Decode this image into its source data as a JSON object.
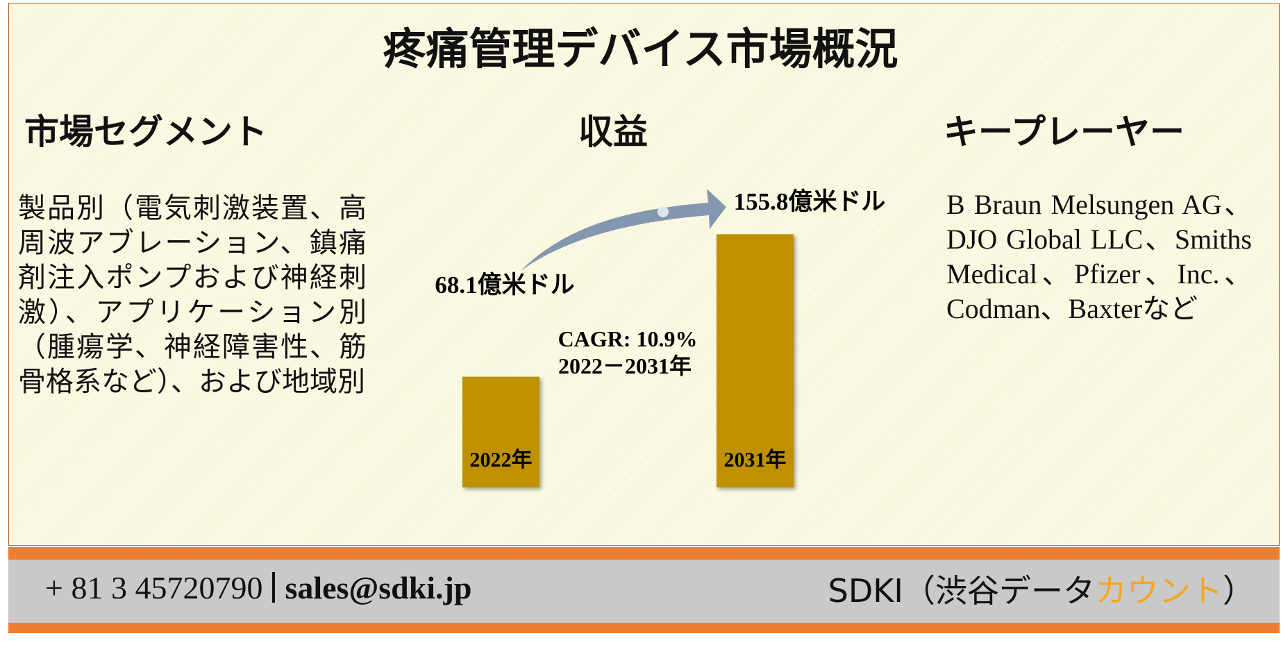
{
  "header": {
    "title": "疼痛管理デバイス市場概況"
  },
  "segments": {
    "heading": "市場セグメント",
    "text": "製品別（電気刺激装置、高周波アブレーション、鎮痛剤注入ポンプおよび神経刺激）、アプリケーション別（腫瘍学、神経障害性、筋骨格系など）、および地域別"
  },
  "revenue": {
    "heading": "収益",
    "categories": [
      "2022年",
      "2031年"
    ],
    "values": [
      68.1,
      155.8
    ],
    "value_labels": [
      "68.1億米ドル",
      "155.8億米ドル"
    ],
    "color": "#bf9000",
    "cagr": "CAGR: 10.9%",
    "period": "2022－2031年"
  },
  "players": {
    "heading": "キープレーヤー",
    "text": "B Braun Melsungen AG、DJO Global LLC、Smiths Medical、Pfizer、Inc.、Codman、Baxterなど"
  },
  "footer": {
    "phone": "+ 81 3 45720790",
    "email": "sales@sdki.jp",
    "brand": {
      "prefix": "SDKI（渋谷データ",
      "highlight": "カウント",
      "suffix": "）"
    }
  }
}
